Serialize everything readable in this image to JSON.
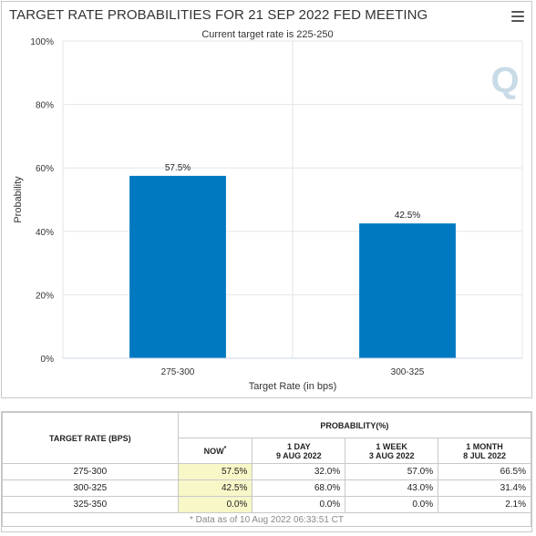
{
  "chart_data": {
    "type": "bar",
    "title": "TARGET RATE PROBABILITIES FOR 21 SEP 2022 FED MEETING",
    "subtitle": "Current target rate is 225-250",
    "xlabel": "Target Rate (in bps)",
    "ylabel": "Probability",
    "categories": [
      "275-300",
      "300-325"
    ],
    "values": [
      57.5,
      42.5
    ],
    "data_labels": [
      "57.5%",
      "42.5%"
    ],
    "ylim": [
      0,
      100
    ],
    "yticks": [
      "0%",
      "20%",
      "40%",
      "60%",
      "80%",
      "100%"
    ],
    "grid": true,
    "bar_color": "#0079c1",
    "watermark": "Q"
  },
  "table": {
    "header_rate": "TARGET RATE (BPS)",
    "header_prob": "PROBABILITY(%)",
    "columns": [
      {
        "line1": "NOW",
        "line2": "",
        "sup": "*"
      },
      {
        "line1": "1 DAY",
        "line2": "9 AUG 2022",
        "sup": ""
      },
      {
        "line1": "1 WEEK",
        "line2": "3 AUG 2022",
        "sup": ""
      },
      {
        "line1": "1 MONTH",
        "line2": "8 JUL 2022",
        "sup": ""
      }
    ],
    "rows": [
      {
        "rate": "275-300",
        "values": [
          "57.5%",
          "32.0%",
          "57.0%",
          "66.5%"
        ]
      },
      {
        "rate": "300-325",
        "values": [
          "42.5%",
          "68.0%",
          "43.0%",
          "31.4%"
        ]
      },
      {
        "rate": "325-350",
        "values": [
          "0.0%",
          "0.0%",
          "0.0%",
          "2.1%"
        ]
      }
    ],
    "footnote": "* Data as of 10 Aug 2022 06:33:51 CT"
  }
}
